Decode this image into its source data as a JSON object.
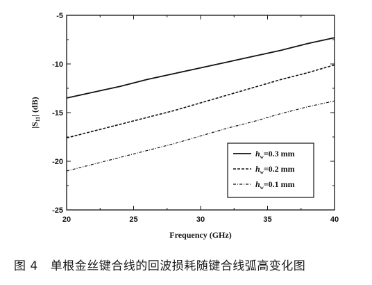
{
  "chart_data": {
    "type": "line",
    "xlabel": "Frequency (GHz)",
    "ylabel_main": "|S",
    "ylabel_sub": "11",
    "ylabel_end": "| (dB)",
    "xlim": [
      20,
      40
    ],
    "ylim": [
      -25,
      -5
    ],
    "xticks": [
      20,
      25,
      30,
      35,
      40
    ],
    "yticks": [
      -25,
      -20,
      -15,
      -10,
      -5
    ],
    "grid": false,
    "legend_placement": "bottom-right",
    "series": [
      {
        "name_main": "h",
        "name_sub": "w",
        "name_rest": "=0.3 mm",
        "style": "solid",
        "x": [
          20,
          22,
          24,
          26,
          28,
          30,
          32,
          34,
          36,
          38,
          40
        ],
        "y": [
          -13.5,
          -12.9,
          -12.3,
          -11.6,
          -11.0,
          -10.4,
          -9.8,
          -9.2,
          -8.6,
          -7.9,
          -7.3
        ]
      },
      {
        "name_main": "h",
        "name_sub": "w",
        "name_rest": "=0.2 mm",
        "style": "dashed",
        "x": [
          20,
          22,
          24,
          26,
          28,
          30,
          32,
          34,
          36,
          38,
          40
        ],
        "y": [
          -17.6,
          -16.9,
          -16.2,
          -15.5,
          -14.8,
          -14.0,
          -13.2,
          -12.4,
          -11.6,
          -10.9,
          -10.1
        ]
      },
      {
        "name_main": "h",
        "name_sub": "w",
        "name_rest": "=0.1 mm",
        "style": "dashdot",
        "x": [
          20,
          22,
          24,
          26,
          28,
          30,
          32,
          34,
          36,
          38,
          40
        ],
        "y": [
          -21.0,
          -20.3,
          -19.6,
          -18.9,
          -18.2,
          -17.4,
          -16.6,
          -15.9,
          -15.1,
          -14.4,
          -13.8
        ]
      }
    ]
  },
  "caption": {
    "number": "图 4",
    "text": "单根金丝键合线的回波损耗随键合线弧高变化图"
  },
  "colors": {
    "line": "#111111",
    "axis": "#111111"
  }
}
